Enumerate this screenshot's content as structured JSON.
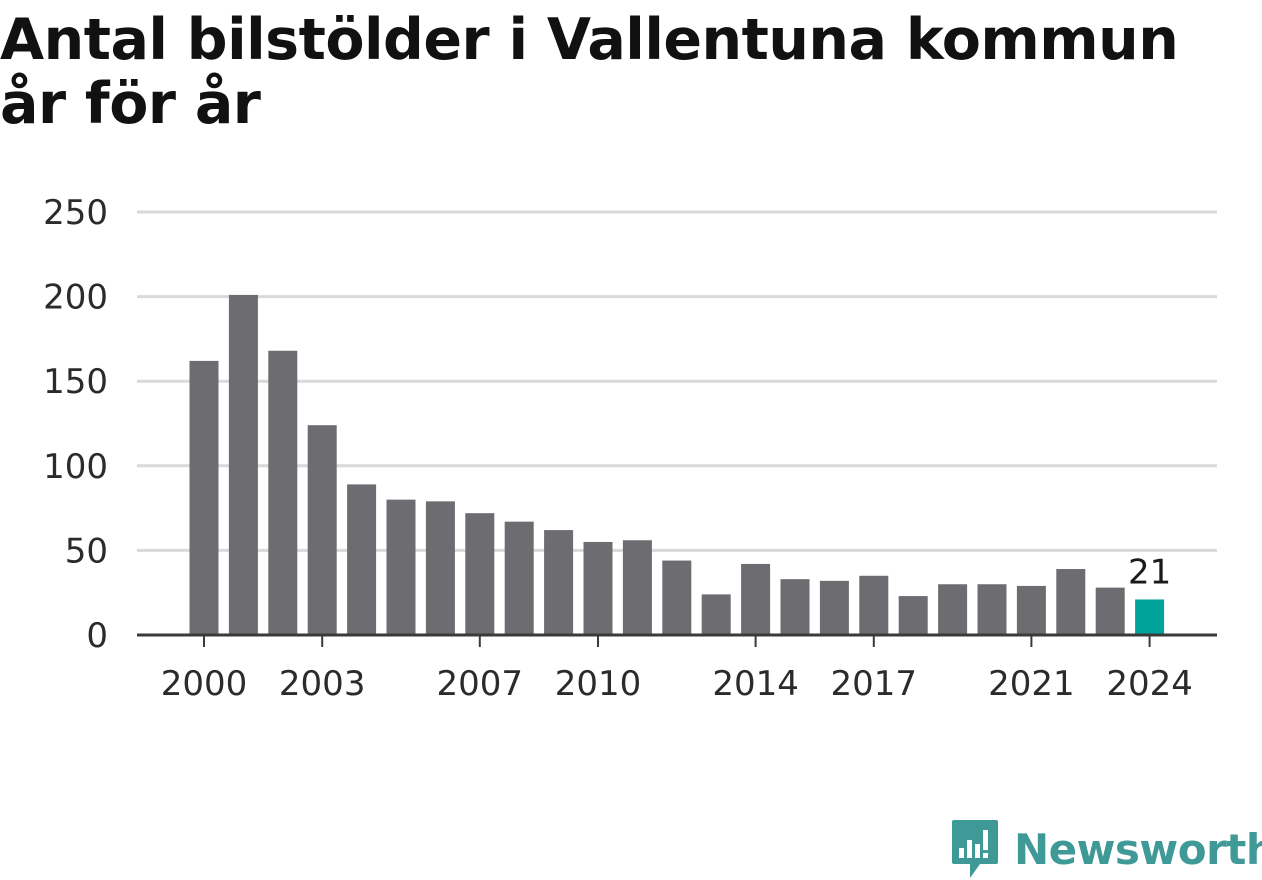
{
  "title": "Antal bilstölder i Vallentuna kommun år för år",
  "colors": {
    "bar": "#6d6c71",
    "highlight": "#00a39a",
    "grid": "#d9d9d9",
    "axis": "#3a3a3a",
    "brand": "#3f9996"
  },
  "brand": {
    "name": "Newsworthy",
    "icon": "newsworthy-logo-icon"
  },
  "chart_data": {
    "type": "bar",
    "title": "Antal bilstölder i Vallentuna kommun år för år",
    "xlabel": "",
    "ylabel": "",
    "categories": [
      "2000",
      "2001",
      "2002",
      "2003",
      "2004",
      "2005",
      "2006",
      "2007",
      "2008",
      "2009",
      "2010",
      "2011",
      "2012",
      "2013",
      "2014",
      "2015",
      "2016",
      "2017",
      "2018",
      "2019",
      "2020",
      "2021",
      "2022",
      "2023",
      "2024"
    ],
    "values": [
      162,
      201,
      168,
      124,
      89,
      80,
      79,
      72,
      67,
      62,
      55,
      56,
      44,
      24,
      42,
      33,
      32,
      35,
      23,
      30,
      30,
      29,
      39,
      28,
      21
    ],
    "ylim": [
      0,
      250
    ],
    "yticks": [
      0,
      50,
      100,
      150,
      200,
      250
    ],
    "xtick_labels": [
      "2000",
      "2003",
      "2007",
      "2010",
      "2014",
      "2017",
      "2021",
      "2024"
    ],
    "highlight_index": 24,
    "value_label": "21",
    "grid": true
  }
}
